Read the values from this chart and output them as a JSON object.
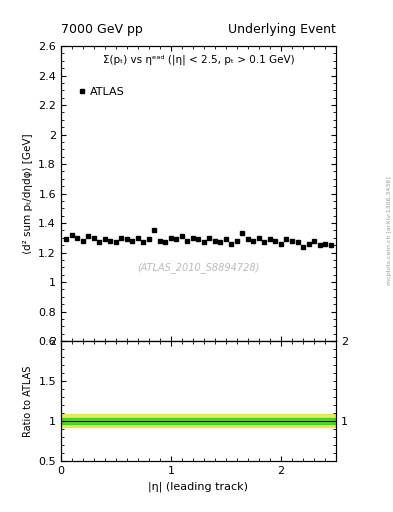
{
  "title_left": "7000 GeV pp",
  "title_right": "Underlying Event",
  "annotation": "Σ(pₜ) vs ηᵉᵃᵈ (|η| < 2.5, pₜ > 0.1 GeV)",
  "watermark": "(ATLAS_2010_S8894728)",
  "ylabel_main": "⟨d² sum pₜ/dηdφ⟩ [GeV]",
  "ylabel_ratio": "Ratio to ATLAS",
  "xlabel": "|η| (leading track)",
  "legend_label": "ATLAS",
  "xlim": [
    0,
    2.5
  ],
  "ylim_main": [
    0.6,
    2.6
  ],
  "ylim_ratio": [
    0.5,
    2.0
  ],
  "yticks_main": [
    0.6,
    0.8,
    1.0,
    1.2,
    1.4,
    1.6,
    1.8,
    2.0,
    2.2,
    2.4,
    2.6
  ],
  "yticks_ratio": [
    0.5,
    1.0,
    1.5,
    2.0
  ],
  "data_x": [
    0.05,
    0.1,
    0.15,
    0.2,
    0.25,
    0.3,
    0.35,
    0.4,
    0.45,
    0.5,
    0.55,
    0.6,
    0.65,
    0.7,
    0.75,
    0.8,
    0.85,
    0.9,
    0.95,
    1.0,
    1.05,
    1.1,
    1.15,
    1.2,
    1.25,
    1.3,
    1.35,
    1.4,
    1.45,
    1.5,
    1.55,
    1.6,
    1.65,
    1.7,
    1.75,
    1.8,
    1.85,
    1.9,
    1.95,
    2.0,
    2.05,
    2.1,
    2.15,
    2.2,
    2.25,
    2.3,
    2.35,
    2.4,
    2.45
  ],
  "data_y": [
    1.29,
    1.32,
    1.3,
    1.28,
    1.31,
    1.3,
    1.27,
    1.29,
    1.28,
    1.27,
    1.3,
    1.29,
    1.28,
    1.3,
    1.27,
    1.29,
    1.35,
    1.28,
    1.27,
    1.3,
    1.29,
    1.31,
    1.28,
    1.3,
    1.29,
    1.27,
    1.3,
    1.28,
    1.27,
    1.29,
    1.26,
    1.28,
    1.33,
    1.29,
    1.28,
    1.3,
    1.27,
    1.29,
    1.28,
    1.26,
    1.29,
    1.28,
    1.27,
    1.24,
    1.26,
    1.28,
    1.25,
    1.26,
    1.25
  ],
  "data_color": "#000000",
  "marker": "s",
  "marker_size": 3.5,
  "ratio_line_y": 1.0,
  "ratio_band_green_lo": 0.96,
  "ratio_band_green_hi": 1.04,
  "ratio_band_yellow_lo": 0.92,
  "ratio_band_yellow_hi": 1.08,
  "band_green_color": "#00cc00",
  "band_yellow_color": "#dddd00",
  "band_alpha": 0.6,
  "bg_color": "#ffffff",
  "watermark_color": "#bbbbbb",
  "watermark_fontsize": 7,
  "side_label_color": "#999999",
  "side_label": "mcplots.cern.ch [arXiv:1306.3436]"
}
